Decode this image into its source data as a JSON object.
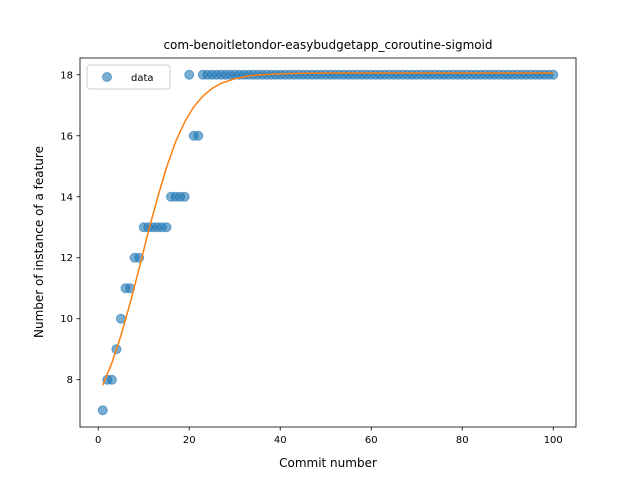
{
  "chart_data": {
    "type": "scatter",
    "title": "com-benoitletondor-easybudgetapp_coroutine-sigmoid",
    "xlabel": "Commit number",
    "ylabel": "Number of instance of a feature",
    "xlim": [
      -4,
      105
    ],
    "ylim": [
      6.45,
      18.55
    ],
    "xticks": [
      0,
      20,
      40,
      60,
      80,
      100
    ],
    "yticks": [
      8,
      10,
      12,
      14,
      16,
      18
    ],
    "legend": {
      "placement": "upper-left",
      "entries": [
        "data"
      ]
    },
    "colors": {
      "data": "#1f77b4",
      "fit": "#ff7f0e"
    },
    "series": [
      {
        "name": "data",
        "kind": "scatter",
        "x": [
          1,
          2,
          3,
          4,
          5,
          6,
          7,
          8,
          9,
          10,
          11,
          12,
          13,
          14,
          15,
          16,
          17,
          18,
          19,
          20,
          21,
          22,
          23,
          24,
          25,
          26,
          27,
          28,
          29,
          30,
          31,
          32,
          33,
          34,
          35,
          36,
          37,
          38,
          39,
          40,
          41,
          42,
          43,
          44,
          45,
          46,
          47,
          48,
          49,
          50,
          51,
          52,
          53,
          54,
          55,
          56,
          57,
          58,
          59,
          60,
          61,
          62,
          63,
          64,
          65,
          66,
          67,
          68,
          69,
          70,
          71,
          72,
          73,
          74,
          75,
          76,
          77,
          78,
          79,
          80,
          81,
          82,
          83,
          84,
          85,
          86,
          87,
          88,
          89,
          90,
          91,
          92,
          93,
          94,
          95,
          96,
          97,
          98,
          99,
          100
        ],
        "y": [
          7,
          8,
          8,
          9,
          10,
          11,
          11,
          12,
          12,
          13,
          13,
          13,
          13,
          13,
          13,
          14,
          14,
          14,
          14,
          18,
          16,
          16,
          18,
          18,
          18,
          18,
          18,
          18,
          18,
          18,
          18,
          18,
          18,
          18,
          18,
          18,
          18,
          18,
          18,
          18,
          18,
          18,
          18,
          18,
          18,
          18,
          18,
          18,
          18,
          18,
          18,
          18,
          18,
          18,
          18,
          18,
          18,
          18,
          18,
          18,
          18,
          18,
          18,
          18,
          18,
          18,
          18,
          18,
          18,
          18,
          18,
          18,
          18,
          18,
          18,
          18,
          18,
          18,
          18,
          18,
          18,
          18,
          18,
          18,
          18,
          18,
          18,
          18,
          18,
          18,
          18,
          18,
          18,
          18,
          18,
          18,
          18,
          18,
          18,
          18
        ]
      },
      {
        "kind": "line",
        "x": [
          1,
          3,
          5,
          7,
          9,
          11,
          13,
          15,
          17,
          19,
          21,
          23,
          25,
          27,
          30,
          33,
          36,
          40,
          45,
          50,
          60,
          70,
          80,
          90,
          100
        ],
        "y": [
          7.82,
          8.55,
          9.45,
          10.5,
          11.65,
          12.85,
          13.95,
          14.95,
          15.8,
          16.45,
          16.95,
          17.3,
          17.55,
          17.72,
          17.87,
          17.96,
          18.0,
          18.03,
          18.05,
          18.06,
          18.06,
          18.06,
          18.06,
          18.06,
          18.06
        ]
      }
    ]
  }
}
